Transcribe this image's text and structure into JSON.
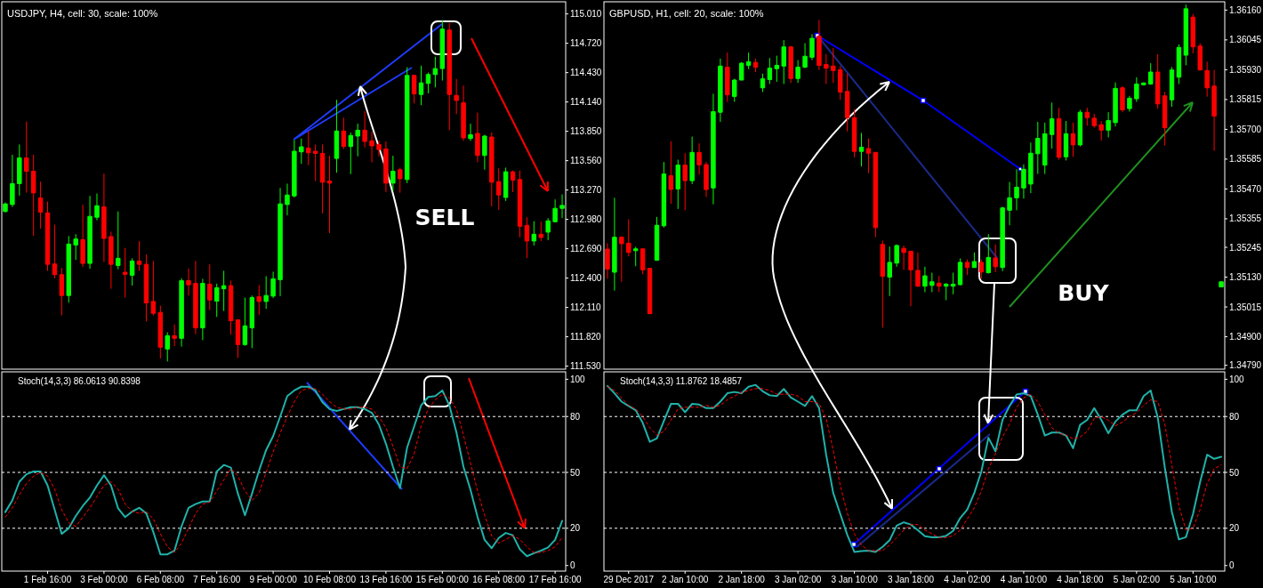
{
  "chart_data": [
    {
      "type": "candlestick",
      "title": "USDJPY, H4, cell: 30, scale: 100%",
      "tick_labels": "y",
      "annotations": [
        "SELL"
      ],
      "categories": [
        null,
        null,
        null,
        null,
        null,
        null,
        null,
        null,
        null,
        null,
        null,
        null,
        null,
        null,
        null,
        null,
        null,
        null,
        null,
        null,
        null,
        null,
        null,
        null,
        null,
        null,
        null,
        null,
        null,
        null,
        null,
        null,
        null,
        null,
        null,
        null,
        null,
        null,
        null,
        null,
        null,
        null,
        null,
        null,
        null,
        null,
        null,
        null,
        null,
        null,
        null,
        null,
        null,
        null,
        null,
        null,
        null,
        null,
        null,
        null,
        null,
        null,
        null,
        null,
        null,
        null,
        null,
        null,
        null,
        null,
        null,
        null,
        null,
        null,
        null,
        null,
        null,
        null,
        null,
        null
      ],
      "ylim": [
        111.5,
        115.13
      ],
      "yticks": [
        {
          "value": 115.01,
          "label": "115.010"
        },
        {
          "value": 114.72,
          "label": "114.720"
        },
        {
          "value": 114.43,
          "label": "114.430"
        },
        {
          "value": 114.14,
          "label": "114.140"
        },
        {
          "value": 113.85,
          "label": "113.850"
        },
        {
          "value": 113.56,
          "label": "113.560"
        },
        {
          "value": 113.27,
          "label": "113.270"
        },
        {
          "value": 112.98,
          "label": "112.980"
        },
        {
          "value": 112.69,
          "label": "112.690"
        },
        {
          "value": 112.4,
          "label": "112.400"
        },
        {
          "value": 112.11,
          "label": "112.110"
        },
        {
          "value": 111.82,
          "label": "111.820"
        },
        {
          "value": 111.53,
          "label": "111.530"
        }
      ],
      "ohlc": [
        [
          113.059,
          113.148,
          113.045,
          113.133
        ],
        [
          113.127,
          113.618,
          113.103,
          113.333
        ],
        [
          113.333,
          113.72,
          113.215,
          113.588
        ],
        [
          113.588,
          113.947,
          113.244,
          113.456
        ],
        [
          113.456,
          113.618,
          112.818,
          113.241
        ],
        [
          113.192,
          113.353,
          112.889,
          113.051
        ],
        [
          113.045,
          113.156,
          112.472,
          112.536
        ],
        [
          112.539,
          112.927,
          112.398,
          112.434
        ],
        [
          112.434,
          112.501,
          112.031,
          112.228
        ],
        [
          112.228,
          112.815,
          112.157,
          112.736
        ],
        [
          112.727,
          112.833,
          112.58,
          112.786
        ],
        [
          112.78,
          113.124,
          112.51,
          112.545
        ],
        [
          112.545,
          113.212,
          112.492,
          113.01
        ],
        [
          113.001,
          113.236,
          112.971,
          113.115
        ],
        [
          113.103,
          113.432,
          112.56,
          112.792
        ],
        [
          112.81,
          112.859,
          112.295,
          112.536
        ],
        [
          112.525,
          113.059,
          112.487,
          112.595
        ],
        [
          112.457,
          112.698,
          112.207,
          112.437
        ],
        [
          112.428,
          112.595,
          112.325,
          112.569
        ],
        [
          112.569,
          112.765,
          112.472,
          112.536
        ],
        [
          112.536,
          112.633,
          111.972,
          112.154
        ],
        [
          112.169,
          112.569,
          112.031,
          112.052
        ],
        [
          112.061,
          112.128,
          111.605,
          111.717
        ],
        [
          111.699,
          111.864,
          111.576,
          111.831
        ],
        [
          111.831,
          111.943,
          111.728,
          111.805
        ],
        [
          111.805,
          112.398,
          111.723,
          112.375
        ],
        [
          112.375,
          112.495,
          112.228,
          112.334
        ],
        [
          112.348,
          112.569,
          111.846,
          111.908
        ],
        [
          111.908,
          112.392,
          111.787,
          112.348
        ],
        [
          112.34,
          112.536,
          112.084,
          112.184
        ],
        [
          112.172,
          112.345,
          112.016,
          112.304
        ],
        [
          112.295,
          112.472,
          112.075,
          112.325
        ],
        [
          112.325,
          112.375,
          111.84,
          111.978
        ],
        [
          111.987,
          111.987,
          111.611,
          111.743
        ],
        [
          111.743,
          112.207,
          111.731,
          111.928
        ],
        [
          111.908,
          112.228,
          111.708,
          112.207
        ],
        [
          112.216,
          112.331,
          112.037,
          112.169
        ],
        [
          112.169,
          112.419,
          112.096,
          112.228
        ],
        [
          112.222,
          112.463,
          112.202,
          112.392
        ],
        [
          112.384,
          113.291,
          112.222,
          113.133
        ],
        [
          113.127,
          113.333,
          113.021,
          113.221
        ],
        [
          113.212,
          113.764,
          113.197,
          113.653
        ],
        [
          113.647,
          113.779,
          113.529,
          113.697
        ],
        [
          113.685,
          113.853,
          113.515,
          113.638
        ],
        [
          113.653,
          113.72,
          113.359,
          113.632
        ],
        [
          113.632,
          113.72,
          113.039,
          113.347
        ],
        [
          113.359,
          113.609,
          112.845,
          113.338
        ],
        [
          113.582,
          114.161,
          113.441,
          113.853
        ],
        [
          113.853,
          113.985,
          113.676,
          113.7
        ],
        [
          113.7,
          113.838,
          113.427,
          113.809
        ],
        [
          113.803,
          113.926,
          113.603,
          113.861
        ],
        [
          113.861,
          114.049,
          113.691,
          113.75
        ],
        [
          113.756,
          113.844,
          113.544,
          113.706
        ],
        [
          113.72,
          113.756,
          113.603,
          113.67
        ],
        [
          113.676,
          113.75,
          113.25,
          113.338
        ],
        [
          113.338,
          113.609,
          113.265,
          113.456
        ],
        [
          113.471,
          113.491,
          113.244,
          113.382
        ],
        [
          113.374,
          114.484,
          113.338,
          114.402
        ],
        [
          114.402,
          114.411,
          114.126,
          114.22
        ],
        [
          114.214,
          114.499,
          114.108,
          114.329
        ],
        [
          114.323,
          114.431,
          114.226,
          114.411
        ],
        [
          114.411,
          114.587,
          114.284,
          114.47
        ],
        [
          114.47,
          114.948,
          114.352,
          114.86
        ],
        [
          114.851,
          114.919,
          113.861,
          114.214
        ],
        [
          114.205,
          114.367,
          114.02,
          114.155
        ],
        [
          114.132,
          114.302,
          113.756,
          113.785
        ],
        [
          113.779,
          113.926,
          113.756,
          113.817
        ],
        [
          113.829,
          114.035,
          113.544,
          113.612
        ],
        [
          113.612,
          113.815,
          113.471,
          113.803
        ],
        [
          113.794,
          113.838,
          113.109,
          113.347
        ],
        [
          113.353,
          113.485,
          113.074,
          113.221
        ],
        [
          113.197,
          113.491,
          113.162,
          113.45
        ],
        [
          113.45,
          113.462,
          113.25,
          113.368
        ],
        [
          113.374,
          113.462,
          112.804,
          112.912
        ],
        [
          112.921,
          113.001,
          112.598,
          112.766
        ],
        [
          112.766,
          112.962,
          112.722,
          112.833
        ],
        [
          112.833,
          112.957,
          112.766,
          112.801
        ],
        [
          112.854,
          112.992,
          112.775,
          112.966
        ],
        [
          112.957,
          113.177,
          112.951,
          113.089
        ],
        [
          113.089,
          113.227,
          112.992,
          113.118
        ]
      ],
      "colors": [
        "#00ff00",
        "#00ff00",
        "#00ff00",
        "#ff0000",
        "#ff0000",
        "#ff0000",
        "#ff0000",
        "#ff0000",
        "#ff0000",
        "#00ff00",
        "#00ff00",
        "#ff0000",
        "#00ff00",
        "#00ff00",
        "#ff0000",
        "#ff0000",
        "#00ff00",
        "#ff0000",
        "#00ff00",
        "#ff0000",
        "#ff0000",
        "#ff0000",
        "#ff0000",
        "#00ff00",
        "#ff0000",
        "#00ff00",
        "#ff0000",
        "#ff0000",
        "#00ff00",
        "#ff0000",
        "#00ff00",
        "#00ff00",
        "#ff0000",
        "#ff0000",
        "#00ff00",
        "#00ff00",
        "#ff0000",
        "#00ff00",
        "#00ff00",
        "#00ff00",
        "#00ff00",
        "#00ff00",
        "#00ff00",
        "#ff0000",
        "#ff0000",
        "#ff0000",
        "#ff0000",
        "#00ff00",
        "#ff0000",
        "#00ff00",
        "#00ff00",
        "#ff0000",
        "#ff0000",
        "#ff0000",
        "#ff0000",
        "#00ff00",
        "#ff0000",
        "#00ff00",
        "#ff0000",
        "#00ff00",
        "#00ff00",
        "#00ff00",
        "#00ff00",
        "#ff0000",
        "#ff0000",
        "#ff0000",
        "#00ff00",
        "#ff0000",
        "#00ff00",
        "#ff0000",
        "#ff0000",
        "#00ff00",
        "#ff0000",
        "#ff0000",
        "#ff0000",
        "#00ff00",
        "#ff0000",
        "#00ff00",
        "#00ff00",
        "#00ff00"
      ]
    },
    {
      "type": "line",
      "title": "Stoch(14,3,3) 86.0613 90.8398",
      "categories": [
        null,
        null,
        null,
        null,
        null,
        null,
        "1 Feb 16:00",
        null,
        null,
        null,
        null,
        null,
        null,
        null,
        "3 Feb 00:00",
        null,
        null,
        null,
        null,
        null,
        null,
        null,
        "6 Feb 08:00",
        null,
        null,
        null,
        null,
        null,
        null,
        null,
        "7 Feb 16:00",
        null,
        null,
        null,
        null,
        null,
        null,
        null,
        "9 Feb 00:00",
        null,
        null,
        null,
        null,
        null,
        null,
        null,
        "10 Feb 08:00",
        null,
        null,
        null,
        null,
        null,
        null,
        null,
        "13 Feb 16:00",
        null,
        null,
        null,
        null,
        null,
        null,
        null,
        "15 Feb 00:00",
        null,
        null,
        null,
        null,
        null,
        null,
        null,
        "16 Feb 08:00",
        null,
        null,
        null,
        null,
        null,
        null,
        null,
        "17 Feb 16:00",
        null
      ],
      "ylim": [
        -3,
        104
      ],
      "yticks": [
        0,
        20,
        50,
        80,
        100
      ],
      "ref_lines": [
        {
          "axis": "y",
          "value": 20,
          "color": "#ffffff",
          "line_style": "dashed"
        },
        {
          "axis": "y",
          "value": 50,
          "color": "#ffffff",
          "line_style": "dashed"
        },
        {
          "axis": "y",
          "value": 80,
          "color": "#ffffff",
          "line_style": "dashed"
        }
      ],
      "series": [
        {
          "color": "#20b2aa",
          "line_style": "solid",
          "values": [
            28.7,
            35,
            45,
            49,
            50.5,
            50.5,
            43,
            30,
            17,
            20,
            26.6,
            32,
            36.5,
            43,
            48.5,
            43,
            30.7,
            26,
            29,
            31,
            28,
            18,
            6,
            6,
            8,
            21,
            31,
            33,
            34.4,
            34.4,
            50.5,
            54,
            52.6,
            38.6,
            27,
            38.6,
            51,
            62,
            69.5,
            80,
            91,
            94,
            96,
            96,
            94,
            87.6,
            84,
            83,
            84,
            85,
            85,
            84,
            82,
            75.7,
            65.4,
            53,
            41.6,
            63.3,
            74.6,
            86,
            90.5,
            91,
            94,
            86,
            71.5,
            53,
            40.6,
            26,
            13.8,
            9.3,
            14.8,
            17.5,
            16.3,
            8.7,
            5,
            6.6,
            8,
            9.7,
            13.8,
            24
          ]
        },
        {
          "color": "#ff0000",
          "line_style": "dashed",
          "values": [
            26,
            31,
            38,
            44,
            48,
            50,
            48,
            41,
            30,
            23,
            21,
            26,
            31,
            37,
            43,
            45,
            41,
            33,
            29,
            28,
            29,
            25,
            17,
            10,
            7,
            12,
            20,
            28,
            33,
            34,
            40,
            46,
            52,
            48,
            40,
            35,
            39,
            50,
            61,
            71,
            80,
            88,
            94,
            95,
            95,
            92,
            88,
            85,
            84,
            84,
            85,
            85,
            84,
            80,
            74,
            64,
            53,
            52,
            60,
            75,
            84,
            89,
            92,
            90,
            84,
            70,
            55,
            40,
            27,
            16,
            12,
            14,
            16,
            14,
            10,
            7,
            7,
            8,
            10,
            15
          ]
        }
      ]
    },
    {
      "type": "candlestick",
      "title": "GBPUSD, H1, cell: 20, scale: 100%",
      "tick_labels": "y",
      "annotations": [
        "BUY"
      ],
      "categories": [
        null,
        null,
        null,
        null,
        null,
        null,
        null,
        null,
        null,
        null,
        null,
        null,
        null,
        null,
        null,
        null,
        null,
        null,
        null,
        null,
        null,
        null,
        null,
        null,
        null,
        null,
        null,
        null,
        null,
        null,
        null,
        null,
        null,
        null,
        null,
        null,
        null,
        null,
        null,
        null,
        null,
        null,
        null,
        null,
        null,
        null,
        null,
        null,
        null,
        null,
        null,
        null,
        null,
        null,
        null,
        null,
        null,
        null,
        null,
        null,
        null,
        null,
        null,
        null,
        null,
        null,
        null,
        null,
        null,
        null,
        null,
        null,
        null,
        null,
        null,
        null,
        null,
        null,
        null,
        null,
        null,
        null,
        null,
        null,
        null,
        null,
        null,
        null
      ],
      "ylim": [
        1.34775,
        1.36192
      ],
      "yticks": [
        {
          "value": 1.3616,
          "label": "1.36160"
        },
        {
          "value": 1.36045,
          "label": "1.36045"
        },
        {
          "value": 1.3593,
          "label": "1.35930"
        },
        {
          "value": 1.35815,
          "label": "1.35815"
        },
        {
          "value": 1.357,
          "label": "1.35700"
        },
        {
          "value": 1.35585,
          "label": "1.35585"
        },
        {
          "value": 1.3547,
          "label": "1.35470"
        },
        {
          "value": 1.35355,
          "label": "1.35355"
        },
        {
          "value": 1.35245,
          "label": "1.35245"
        },
        {
          "value": 1.3513,
          "label": "1.35130"
        },
        {
          "value": 1.35015,
          "label": "1.35015"
        },
        {
          "value": 1.349,
          "label": "1.34900"
        },
        {
          "value": 1.3479,
          "label": "1.34790"
        }
      ],
      "ohlc": [
        [
          1.35238,
          1.35261,
          1.35124,
          1.35161
        ],
        [
          1.35149,
          1.35436,
          1.35078,
          1.35284
        ],
        [
          1.35284,
          1.35287,
          1.35112,
          1.35259
        ],
        [
          1.35261,
          1.35353,
          1.3521,
          1.35225
        ],
        [
          1.35232,
          1.35247,
          1.35172,
          1.35239
        ],
        [
          1.35239,
          1.35241,
          1.35141,
          1.35158
        ],
        [
          1.35164,
          1.35166,
          1.34989,
          1.34989
        ],
        [
          1.35195,
          1.35362,
          1.35193,
          1.3533
        ],
        [
          1.35328,
          1.35574,
          1.35321,
          1.35528
        ],
        [
          1.35521,
          1.35654,
          1.35413,
          1.35468
        ],
        [
          1.3547,
          1.35583,
          1.35393,
          1.35562
        ],
        [
          1.35562,
          1.35608,
          1.35388,
          1.35502
        ],
        [
          1.35502,
          1.35672,
          1.35489,
          1.35611
        ],
        [
          1.35611,
          1.35646,
          1.35525,
          1.35563
        ],
        [
          1.35564,
          1.35574,
          1.35439,
          1.35468
        ],
        [
          1.35474,
          1.35837,
          1.35411,
          1.35768
        ],
        [
          1.35766,
          1.35973,
          1.35729,
          1.35944
        ],
        [
          1.3594,
          1.35996,
          1.35806,
          1.35833
        ],
        [
          1.35827,
          1.35895,
          1.35806,
          1.3589
        ],
        [
          1.3589,
          1.35959,
          1.3589,
          1.35955
        ],
        [
          1.35947,
          1.35996,
          1.35932,
          1.35961
        ],
        [
          1.35958,
          1.35973,
          1.35921,
          1.3594
        ],
        [
          1.3586,
          1.35915,
          1.35844,
          1.35895
        ],
        [
          1.35892,
          1.35975,
          1.35875,
          1.35936
        ],
        [
          1.35934,
          1.35984,
          1.35883,
          1.35947
        ],
        [
          1.35944,
          1.36044,
          1.35875,
          1.36018
        ],
        [
          1.36018,
          1.36021,
          1.35879,
          1.35896
        ],
        [
          1.35896,
          1.35967,
          1.35879,
          1.3594
        ],
        [
          1.3594,
          1.36032,
          1.35936,
          1.35982
        ],
        [
          1.35978,
          1.36067,
          1.35967,
          1.36051
        ],
        [
          1.36059,
          1.36122,
          1.35929,
          1.35947
        ],
        [
          1.3595,
          1.3599,
          1.35875,
          1.35936
        ],
        [
          1.35944,
          1.36013,
          1.35879,
          1.35927
        ],
        [
          1.3593,
          1.35944,
          1.35814,
          1.35844
        ],
        [
          1.35846,
          1.35915,
          1.35692,
          1.35745
        ],
        [
          1.35745,
          1.35778,
          1.35592,
          1.35615
        ],
        [
          1.35615,
          1.35686,
          1.35557,
          1.35631
        ],
        [
          1.35626,
          1.35665,
          1.35531,
          1.35608
        ],
        [
          1.35611,
          1.35611,
          1.35284,
          1.35321
        ],
        [
          1.35256,
          1.35271,
          1.34935,
          1.35133
        ],
        [
          1.3513,
          1.35248,
          1.35057,
          1.35187
        ],
        [
          1.35184,
          1.35256,
          1.3517,
          1.35252
        ],
        [
          1.35241,
          1.35252,
          1.35158,
          1.35225
        ],
        [
          1.3523,
          1.3523,
          1.35018,
          1.35158
        ],
        [
          1.35156,
          1.35225,
          1.35092,
          1.35095
        ],
        [
          1.35095,
          1.3517,
          1.35072,
          1.35135
        ],
        [
          1.35098,
          1.35147,
          1.35072,
          1.35112
        ],
        [
          1.35107,
          1.35135,
          1.35072,
          1.35095
        ],
        [
          1.35095,
          1.35107,
          1.35041,
          1.35103
        ],
        [
          1.35095,
          1.35147,
          1.35064,
          1.35103
        ],
        [
          1.35101,
          1.35202,
          1.35098,
          1.35187
        ],
        [
          1.35187,
          1.35198,
          1.35138,
          1.35167
        ],
        [
          1.35167,
          1.35225,
          1.35167,
          1.3519
        ],
        [
          1.35187,
          1.35198,
          1.35124,
          1.3515
        ],
        [
          1.35147,
          1.35296,
          1.35144,
          1.35206
        ],
        [
          1.35204,
          1.35256,
          1.35149,
          1.3517
        ],
        [
          1.35167,
          1.35401,
          1.35153,
          1.35397
        ],
        [
          1.35388,
          1.35497,
          1.3533,
          1.35436
        ],
        [
          1.35436,
          1.35546,
          1.35388,
          1.35477
        ],
        [
          1.35474,
          1.35565,
          1.35433,
          1.35546
        ],
        [
          1.35489,
          1.35649,
          1.35454,
          1.35608
        ],
        [
          1.35606,
          1.35729,
          1.35528,
          1.35665
        ],
        [
          1.35562,
          1.35726,
          1.35528,
          1.35683
        ],
        [
          1.3568,
          1.35803,
          1.35626,
          1.35741
        ],
        [
          1.35741,
          1.35783,
          1.35583,
          1.35592
        ],
        [
          1.35594,
          1.35732,
          1.3558,
          1.35683
        ],
        [
          1.35683,
          1.35726,
          1.35594,
          1.3564
        ],
        [
          1.3564,
          1.35775,
          1.35634,
          1.35766
        ],
        [
          1.35766,
          1.35783,
          1.35714,
          1.35745
        ],
        [
          1.35743,
          1.3576,
          1.35706,
          1.35714
        ],
        [
          1.35718,
          1.35732,
          1.35657,
          1.35697
        ],
        [
          1.35697,
          1.35766,
          1.35669,
          1.35734
        ],
        [
          1.35726,
          1.35881,
          1.35711,
          1.35858
        ],
        [
          1.3586,
          1.35867,
          1.35766,
          1.35775
        ],
        [
          1.3578,
          1.35829,
          1.35768,
          1.3582
        ],
        [
          1.35818,
          1.35901,
          1.35806,
          1.35875
        ],
        [
          1.35872,
          1.35881,
          1.35869,
          1.35879
        ],
        [
          1.35875,
          1.35955,
          1.35872,
          1.35921
        ],
        [
          1.35921,
          1.3599,
          1.3578,
          1.35798
        ],
        [
          1.35829,
          1.35844,
          1.35638,
          1.35706
        ],
        [
          1.35814,
          1.3594,
          1.35787,
          1.35929
        ],
        [
          1.35901,
          1.36028,
          1.35875,
          1.36016
        ],
        [
          1.35986,
          1.36181,
          1.35947,
          1.36165
        ],
        [
          1.36133,
          1.36145,
          1.35993,
          1.36018
        ],
        [
          1.36021,
          1.36032,
          1.35927,
          1.35929
        ],
        [
          1.35927,
          1.35961,
          1.35826,
          1.3586
        ],
        [
          1.35867,
          1.35929,
          1.35617,
          1.35751
        ],
        [
          1.35092,
          1.35112,
          1.35092,
          1.35112
        ]
      ],
      "colors": [
        "#ff0000",
        "#00ff00",
        "#ff0000",
        "#ff0000",
        "#00ff00",
        "#ff0000",
        "#ff0000",
        "#00ff00",
        "#00ff00",
        "#ff0000",
        "#00ff00",
        "#ff0000",
        "#00ff00",
        "#ff0000",
        "#ff0000",
        "#00ff00",
        "#00ff00",
        "#ff0000",
        "#00ff00",
        "#00ff00",
        "#00ff00",
        "#ff0000",
        "#00ff00",
        "#00ff00",
        "#00ff00",
        "#00ff00",
        "#ff0000",
        "#00ff00",
        "#00ff00",
        "#00ff00",
        "#ff0000",
        "#ff0000",
        "#ff0000",
        "#ff0000",
        "#ff0000",
        "#ff0000",
        "#00ff00",
        "#ff0000",
        "#ff0000",
        "#ff0000",
        "#00ff00",
        "#00ff00",
        "#ff0000",
        "#ff0000",
        "#ff0000",
        "#00ff00",
        "#00ff00",
        "#ff0000",
        "#00ff00",
        "#00ff00",
        "#00ff00",
        "#ff0000",
        "#00ff00",
        "#ff0000",
        "#00ff00",
        "#ff0000",
        "#00ff00",
        "#00ff00",
        "#00ff00",
        "#00ff00",
        "#00ff00",
        "#00ff00",
        "#00ff00",
        "#00ff00",
        "#ff0000",
        "#00ff00",
        "#ff0000",
        "#00ff00",
        "#ff0000",
        "#ff0000",
        "#ff0000",
        "#00ff00",
        "#00ff00",
        "#ff0000",
        "#00ff00",
        "#00ff00",
        "#00ff00",
        "#00ff00",
        "#ff0000",
        "#ff0000",
        "#00ff00",
        "#00ff00",
        "#00ff00",
        "#ff0000",
        "#ff0000",
        "#ff0000",
        "#ff0000",
        "#00ff00"
      ]
    },
    {
      "type": "line",
      "title": "Stoch(14,3,3) 11.8762 18.4857",
      "categories": [
        null,
        null,
        null,
        "29 Dec 2017",
        null,
        null,
        null,
        null,
        null,
        null,
        null,
        "2 Jan 10:00",
        null,
        null,
        null,
        null,
        null,
        null,
        null,
        "2 Jan 18:00",
        null,
        null,
        null,
        null,
        null,
        null,
        null,
        "3 Jan 02:00",
        null,
        null,
        null,
        null,
        null,
        null,
        null,
        "3 Jan 10:00",
        null,
        null,
        null,
        null,
        null,
        null,
        null,
        "3 Jan 18:00",
        null,
        null,
        null,
        null,
        null,
        null,
        null,
        "4 Jan 02:00",
        null,
        null,
        null,
        null,
        null,
        null,
        null,
        "4 Jan 10:00",
        null,
        null,
        null,
        null,
        null,
        null,
        null,
        "4 Jan 18:00",
        null,
        null,
        null,
        null,
        null,
        null,
        null,
        "5 Jan 02:00",
        null,
        null,
        null,
        null,
        null,
        null,
        null,
        "5 Jan 10:00",
        null,
        null,
        null,
        null
      ],
      "ylim": [
        -3,
        104
      ],
      "yticks": [
        0,
        20,
        50,
        80,
        100
      ],
      "ref_lines": [
        {
          "axis": "y",
          "value": 20,
          "color": "#ffffff",
          "line_style": "dashed"
        },
        {
          "axis": "y",
          "value": 50,
          "color": "#ffffff",
          "line_style": "dashed"
        },
        {
          "axis": "y",
          "value": 80,
          "color": "#ffffff",
          "line_style": "dashed"
        }
      ],
      "series": [
        {
          "color": "#20b2aa",
          "line_style": "solid",
          "values": [
            96.4,
            92.5,
            88,
            85.7,
            83.4,
            76.6,
            66.4,
            68.2,
            77.7,
            86.8,
            86.8,
            82.3,
            86.8,
            86.4,
            84.5,
            84.5,
            88,
            92.5,
            93.2,
            92.5,
            96,
            97,
            93.6,
            91.4,
            91,
            94.8,
            90.2,
            88,
            85.7,
            91,
            84.5,
            59.5,
            39,
            27.7,
            16.4,
            7.3,
            7.7,
            8,
            7.3,
            10,
            13.6,
            21.4,
            23.2,
            22,
            19,
            15.7,
            15.2,
            15.2,
            15.9,
            18.6,
            25.5,
            30,
            39,
            50.5,
            68.6,
            61.4,
            78.2,
            85.7,
            91.8,
            92.5,
            91,
            81,
            69.8,
            71.4,
            71.4,
            69.8,
            63,
            75.5,
            78.2,
            84.5,
            78.2,
            71,
            77.3,
            81,
            83.4,
            83.4,
            91,
            94,
            79.5,
            52.7,
            28.9,
            14,
            15.2,
            27.7,
            44.8,
            59.5,
            57.3,
            58.4
          ]
        },
        {
          "color": "#ff0000",
          "line_style": "dashed",
          "values": [
            96,
            94,
            90,
            86,
            84,
            80,
            74,
            70,
            72,
            78,
            84,
            85,
            85,
            85,
            86,
            85,
            86,
            89,
            91,
            93,
            94,
            95,
            95,
            94,
            92,
            92,
            92,
            91,
            88,
            88,
            87,
            79,
            62,
            43,
            28,
            17,
            11,
            8,
            8,
            8,
            11,
            15,
            19,
            22,
            22,
            19,
            17,
            15,
            15,
            16,
            19,
            25,
            31,
            40,
            52,
            60,
            69,
            76,
            85,
            90,
            92,
            88,
            81,
            74,
            71,
            70,
            68,
            69,
            72,
            79,
            80,
            78,
            75,
            77,
            80,
            82,
            86,
            89,
            88,
            76,
            54,
            32,
            19,
            20,
            30,
            44,
            52,
            54
          ]
        }
      ]
    }
  ]
}
